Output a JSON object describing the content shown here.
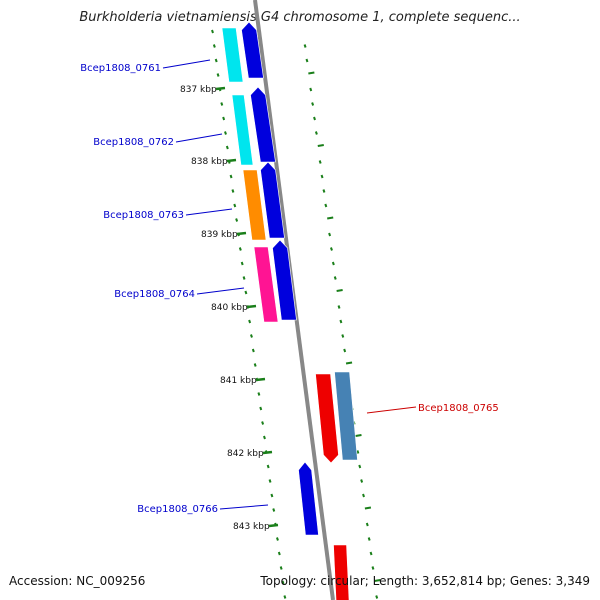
{
  "title": "Burkholderia vietnamiensis G4 chromosome 1, complete sequenc...",
  "footer": {
    "accession": "Accession: NC_009256",
    "stats": "Topology: circular; Length: 3,652,814 bp; Genes: 3,349"
  },
  "colors": {
    "backbone": "#888888",
    "tick": "#1a7f1a",
    "label_forward": "#0000cc",
    "label_reverse": "#cc0000"
  },
  "kbp_ticks": [
    "837 kbp",
    "838 kbp",
    "839 kbp",
    "840 kbp",
    "841 kbp",
    "842 kbp",
    "843 kbp"
  ],
  "genes": [
    {
      "id": "Bcep1808_0761",
      "label": "Bcep1808_0761",
      "strand": "forward",
      "cds_color": "#00e5ee",
      "gene_color": "#0000dd"
    },
    {
      "id": "Bcep1808_0762",
      "label": "Bcep1808_0762",
      "strand": "forward",
      "cds_color": "#00e5ee",
      "gene_color": "#0000dd"
    },
    {
      "id": "Bcep1808_0763",
      "label": "Bcep1808_0763",
      "strand": "forward",
      "cds_color": "#ff8c00",
      "gene_color": "#0000dd"
    },
    {
      "id": "Bcep1808_0764",
      "label": "Bcep1808_0764",
      "strand": "forward",
      "cds_color": "#ff1493",
      "gene_color": "#0000dd"
    },
    {
      "id": "Bcep1808_0765",
      "label": "Bcep1808_0765",
      "strand": "reverse",
      "cds_color": "#4682b4",
      "gene_color": "#ee0000"
    },
    {
      "id": "Bcep1808_0766",
      "label": "Bcep1808_0766",
      "strand": "forward",
      "cds_color": "",
      "gene_color": "#0000dd"
    }
  ]
}
